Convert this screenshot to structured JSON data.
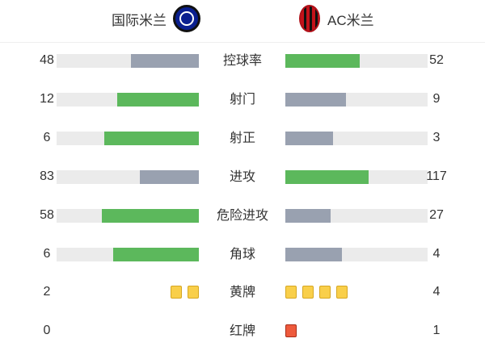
{
  "home": {
    "name": "国际米兰",
    "logo": "inter-milan-logo"
  },
  "away": {
    "name": "AC米兰",
    "logo": "ac-milan-logo"
  },
  "colors": {
    "leader": "#5cb85c",
    "trailer": "#99a1b0",
    "track": "#ebebeb",
    "yellow_card": "#f9cf4a",
    "red_card": "#ee5a3c"
  },
  "stats": [
    {
      "label": "控球率",
      "home": "48",
      "away": "52"
    },
    {
      "label": "射门",
      "home": "12",
      "away": "9"
    },
    {
      "label": "射正",
      "home": "6",
      "away": "3"
    },
    {
      "label": "进攻",
      "home": "83",
      "away": "117"
    },
    {
      "label": "危险进攻",
      "home": "58",
      "away": "27"
    },
    {
      "label": "角球",
      "home": "6",
      "away": "4"
    }
  ],
  "cards": [
    {
      "label": "黄牌",
      "type": "yellow",
      "home": "2",
      "away": "4"
    },
    {
      "label": "红牌",
      "type": "red",
      "home": "0",
      "away": "1"
    }
  ]
}
